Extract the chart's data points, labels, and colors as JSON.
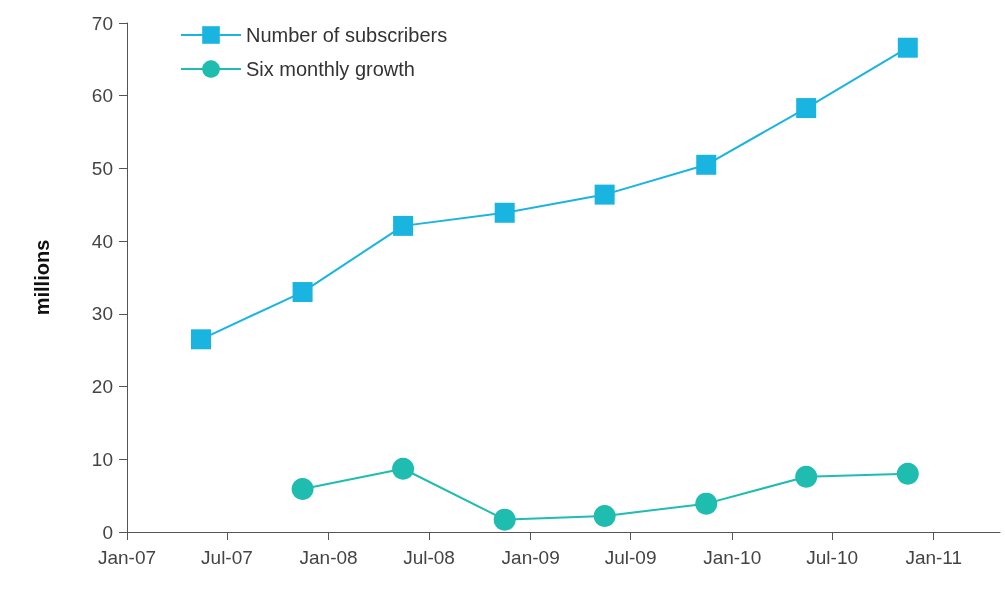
{
  "chart_data": {
    "type": "line",
    "ylabel": "millions",
    "x": [
      "2007-05-15",
      "2007-11-15",
      "2008-05-15",
      "2008-11-15",
      "2009-05-15",
      "2009-11-15",
      "2010-05-15",
      "2010-11-15"
    ],
    "series": [
      {
        "name": "Number of subscribers",
        "color": "#1ab4e0",
        "marker": "square",
        "values": [
          26.5,
          33.0,
          42.1,
          43.9,
          46.4,
          50.5,
          58.3,
          66.6
        ]
      },
      {
        "name": "Six monthly growth",
        "color": "#1fbcb0",
        "marker": "circle",
        "x": [
          "2007-11-15",
          "2008-05-15",
          "2008-11-15",
          "2009-05-15",
          "2009-11-15",
          "2010-05-15",
          "2010-11-15"
        ],
        "values": [
          5.9,
          8.7,
          1.7,
          2.2,
          3.9,
          7.6,
          8.0
        ]
      }
    ],
    "xlim": [
      "2007-01-01",
      "2011-05-01"
    ],
    "xticks": [
      {
        "value": "2007-01-01",
        "label": "Jan-07"
      },
      {
        "value": "2007-07-01",
        "label": "Jul-07"
      },
      {
        "value": "2008-01-01",
        "label": "Jan-08"
      },
      {
        "value": "2008-07-01",
        "label": "Jul-08"
      },
      {
        "value": "2009-01-01",
        "label": "Jan-09"
      },
      {
        "value": "2009-07-01",
        "label": "Jul-09"
      },
      {
        "value": "2010-01-01",
        "label": "Jan-10"
      },
      {
        "value": "2010-07-01",
        "label": "Jul-10"
      },
      {
        "value": "2011-01-01",
        "label": "Jan-11"
      }
    ],
    "ylim": [
      0,
      70
    ],
    "yticks": [
      0,
      10,
      20,
      30,
      40,
      50,
      60,
      70
    ],
    "grid": false,
    "legend": "top left"
  }
}
